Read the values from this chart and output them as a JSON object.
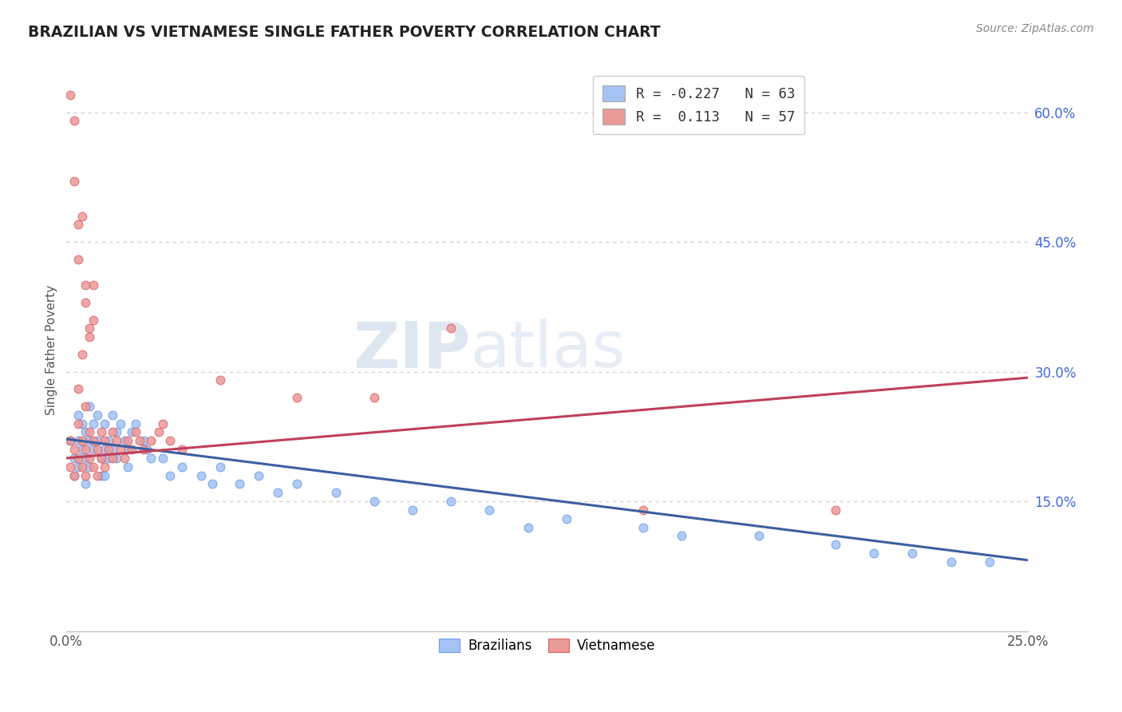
{
  "title": "BRAZILIAN VS VIETNAMESE SINGLE FATHER POVERTY CORRELATION CHART",
  "source": "Source: ZipAtlas.com",
  "ylabel_label": "Single Father Poverty",
  "watermark_zip": "ZIP",
  "watermark_atlas": "atlas",
  "legend_blue_r": "-0.227",
  "legend_blue_n": "63",
  "legend_pink_r": "0.113",
  "legend_pink_n": "57",
  "blue_line_y0": 0.222,
  "blue_line_y1": 0.082,
  "pink_line_y0": 0.2,
  "pink_line_y1": 0.293,
  "xlim": [
    0.0,
    0.25
  ],
  "ylim": [
    0.0,
    0.65
  ],
  "y_ticks": [
    0.15,
    0.3,
    0.45,
    0.6
  ],
  "blue_color": "#a4c2f4",
  "blue_edge_color": "#6d9eeb",
  "pink_color": "#ea9999",
  "pink_edge_color": "#e06666",
  "blue_line_color": "#3c5fa0",
  "pink_line_color": "#c0405a",
  "background_color": "#ffffff",
  "grid_color": "#cccccc",
  "title_color": "#222222",
  "source_color": "#888888",
  "blue_scatter_x": [
    0.001,
    0.002,
    0.002,
    0.003,
    0.003,
    0.003,
    0.004,
    0.004,
    0.005,
    0.005,
    0.005,
    0.006,
    0.006,
    0.006,
    0.007,
    0.007,
    0.008,
    0.008,
    0.009,
    0.009,
    0.01,
    0.01,
    0.01,
    0.011,
    0.011,
    0.012,
    0.012,
    0.013,
    0.013,
    0.014,
    0.015,
    0.016,
    0.016,
    0.017,
    0.018,
    0.02,
    0.021,
    0.022,
    0.025,
    0.027,
    0.03,
    0.035,
    0.038,
    0.04,
    0.045,
    0.05,
    0.055,
    0.06,
    0.07,
    0.08,
    0.09,
    0.1,
    0.11,
    0.12,
    0.13,
    0.15,
    0.16,
    0.18,
    0.2,
    0.21,
    0.22,
    0.23,
    0.24
  ],
  "blue_scatter_y": [
    0.22,
    0.2,
    0.18,
    0.25,
    0.22,
    0.19,
    0.24,
    0.21,
    0.23,
    0.2,
    0.17,
    0.26,
    0.22,
    0.19,
    0.24,
    0.21,
    0.25,
    0.22,
    0.2,
    0.18,
    0.24,
    0.21,
    0.18,
    0.22,
    0.2,
    0.25,
    0.21,
    0.23,
    0.2,
    0.24,
    0.22,
    0.21,
    0.19,
    0.23,
    0.24,
    0.22,
    0.21,
    0.2,
    0.2,
    0.18,
    0.19,
    0.18,
    0.17,
    0.19,
    0.17,
    0.18,
    0.16,
    0.17,
    0.16,
    0.15,
    0.14,
    0.15,
    0.14,
    0.12,
    0.13,
    0.12,
    0.11,
    0.11,
    0.1,
    0.09,
    0.09,
    0.08,
    0.08
  ],
  "pink_scatter_x": [
    0.001,
    0.001,
    0.002,
    0.002,
    0.003,
    0.003,
    0.004,
    0.004,
    0.005,
    0.005,
    0.006,
    0.006,
    0.007,
    0.007,
    0.008,
    0.008,
    0.009,
    0.009,
    0.01,
    0.01,
    0.011,
    0.012,
    0.012,
    0.013,
    0.014,
    0.015,
    0.016,
    0.017,
    0.018,
    0.019,
    0.02,
    0.022,
    0.024,
    0.025,
    0.027,
    0.03,
    0.002,
    0.003,
    0.005,
    0.007,
    0.04,
    0.06,
    0.08,
    0.1,
    0.15,
    0.2,
    0.001,
    0.002,
    0.004,
    0.003,
    0.005,
    0.006,
    0.004,
    0.003,
    0.005,
    0.007,
    0.006
  ],
  "pink_scatter_y": [
    0.22,
    0.19,
    0.21,
    0.18,
    0.24,
    0.2,
    0.22,
    0.19,
    0.21,
    0.18,
    0.23,
    0.2,
    0.22,
    0.19,
    0.21,
    0.18,
    0.23,
    0.2,
    0.22,
    0.19,
    0.21,
    0.23,
    0.2,
    0.22,
    0.21,
    0.2,
    0.22,
    0.21,
    0.23,
    0.22,
    0.21,
    0.22,
    0.23,
    0.24,
    0.22,
    0.21,
    0.59,
    0.47,
    0.4,
    0.36,
    0.29,
    0.27,
    0.27,
    0.35,
    0.14,
    0.14,
    0.62,
    0.52,
    0.48,
    0.43,
    0.38,
    0.34,
    0.32,
    0.28,
    0.26,
    0.4,
    0.35
  ]
}
